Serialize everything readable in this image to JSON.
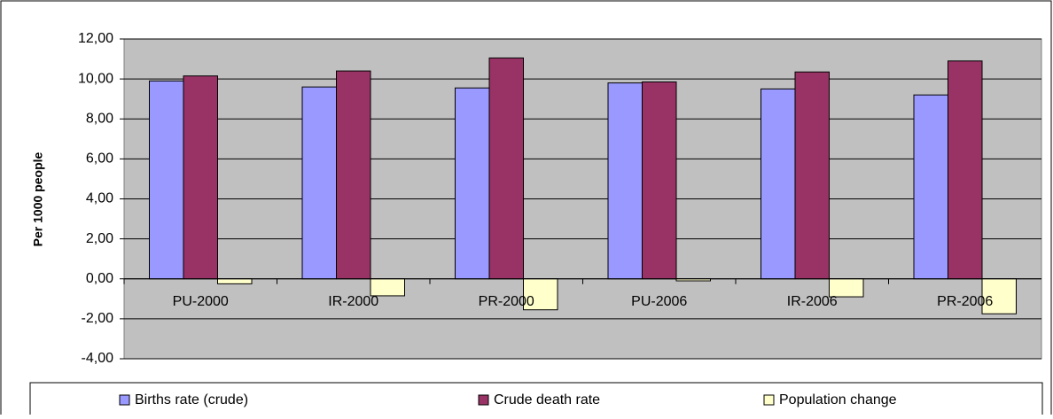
{
  "chart_data": {
    "type": "bar",
    "y_label": "Per 1000 people",
    "categories": [
      "PU-2000",
      "IR-2000",
      "PR-2000",
      "PU-2006",
      "IR-2006",
      "PR-2006"
    ],
    "series": [
      {
        "name": "Births rate (crude)",
        "color": "#9999ff",
        "values": [
          9.9,
          9.6,
          9.55,
          9.8,
          9.5,
          9.2
        ]
      },
      {
        "name": "Crude death rate",
        "color": "#993366",
        "values": [
          10.15,
          10.4,
          11.05,
          9.85,
          10.35,
          10.9
        ]
      },
      {
        "name": "Population change",
        "color": "#ffffcc",
        "values": [
          -0.25,
          -0.85,
          -1.55,
          -0.1,
          -0.9,
          -1.75
        ]
      }
    ],
    "ylim": [
      -4,
      12
    ],
    "yticks": [
      {
        "value": -4,
        "label": "-4,00"
      },
      {
        "value": -2,
        "label": "-2,00"
      },
      {
        "value": 0,
        "label": "0,00"
      },
      {
        "value": 2,
        "label": "2,00"
      },
      {
        "value": 4,
        "label": "4,00"
      },
      {
        "value": 6,
        "label": "6,00"
      },
      {
        "value": 8,
        "label": "8,00"
      },
      {
        "value": 10,
        "label": "10,00"
      },
      {
        "value": 12,
        "label": "12,00"
      }
    ],
    "grid": true,
    "plot_background": "#c0c0c0",
    "legend": "bottom"
  }
}
